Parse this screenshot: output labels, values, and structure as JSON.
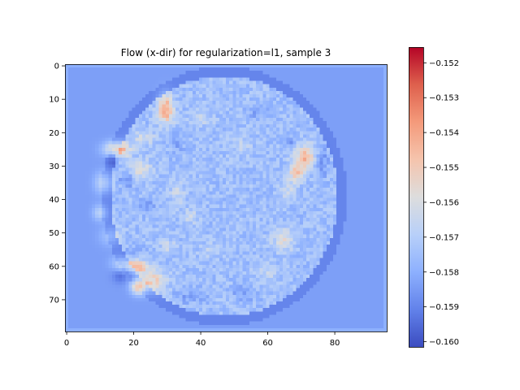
{
  "chart_data": {
    "type": "heatmap",
    "title": "Flow (x-dir) for regularization=l1, sample 3",
    "xlabel": "",
    "ylabel": "",
    "image_shape": [
      80,
      96
    ],
    "x_ticks": [
      "0",
      "20",
      "40",
      "60",
      "80"
    ],
    "y_ticks": [
      "0",
      "10",
      "20",
      "30",
      "40",
      "50",
      "60",
      "70"
    ],
    "x_tick_values": [
      0,
      20,
      40,
      60,
      80
    ],
    "y_tick_values": [
      0,
      10,
      20,
      30,
      40,
      50,
      60,
      70
    ],
    "colormap": "coolwarm",
    "vmin": -0.16015,
    "vmax": -0.15155,
    "colorbar_ticks": [
      "−0.152",
      "−0.153",
      "−0.154",
      "−0.155",
      "−0.156",
      "−0.157",
      "−0.158",
      "−0.159",
      "−0.160"
    ],
    "colorbar_tick_values": [
      -0.152,
      -0.153,
      -0.154,
      -0.155,
      -0.156,
      -0.157,
      -0.158,
      -0.159,
      -0.16
    ],
    "background_value": -0.1584,
    "blob": {
      "center": [
        47,
        39
      ],
      "radius_x": 34,
      "radius_y": 36,
      "value": -0.1575
    },
    "features": [
      {
        "x": 29.5,
        "y": 13,
        "sx": 1.6,
        "sy": 3.0,
        "v": 0.0035
      },
      {
        "x": 15,
        "y": 25,
        "sx": 2.6,
        "sy": 1.6,
        "v": 0.0036
      },
      {
        "x": 71,
        "y": 27.5,
        "sx": 2.2,
        "sy": 2.6,
        "v": 0.003
      },
      {
        "x": 68.5,
        "y": 32,
        "sx": 1.5,
        "sy": 1.8,
        "v": 0.0024
      },
      {
        "x": 21,
        "y": 60,
        "sx": 2.6,
        "sy": 1.3,
        "v": 0.0033
      },
      {
        "x": 21.5,
        "y": 66,
        "sx": 1.6,
        "sy": 1.6,
        "v": 0.0038
      },
      {
        "x": 26,
        "y": 64.5,
        "sx": 2.6,
        "sy": 2.2,
        "v": 0.0022
      },
      {
        "x": 11,
        "y": 35,
        "sx": 1.8,
        "sy": 2.2,
        "v": 0.0018
      },
      {
        "x": 10,
        "y": 44,
        "sx": 1.5,
        "sy": 1.6,
        "v": 0.0016
      },
      {
        "x": 22,
        "y": 31,
        "sx": 2.5,
        "sy": 2.0,
        "v": 0.0016
      },
      {
        "x": 23,
        "y": 21.5,
        "sx": 2.5,
        "sy": 1.6,
        "v": 0.0012
      },
      {
        "x": 64.5,
        "y": 52,
        "sx": 2.2,
        "sy": 2.5,
        "v": 0.0016
      },
      {
        "x": 13,
        "y": 51,
        "sx": 2.2,
        "sy": 2.0,
        "v": 0.001
      },
      {
        "x": 16,
        "y": 59,
        "sx": 2.0,
        "sy": 1.5,
        "v": 0.0012
      },
      {
        "x": 33,
        "y": 38,
        "sx": 1.6,
        "sy": 2.5,
        "v": 0.001
      },
      {
        "x": 37,
        "y": 45,
        "sx": 1.8,
        "sy": 1.6,
        "v": 0.0009
      },
      {
        "x": 30,
        "y": 54,
        "sx": 1.6,
        "sy": 1.6,
        "v": 0.001
      },
      {
        "x": 43,
        "y": 55,
        "sx": 2.2,
        "sy": 1.5,
        "v": 0.0008
      },
      {
        "x": 60,
        "y": 62,
        "sx": 2.5,
        "sy": 1.8,
        "v": 0.0008
      },
      {
        "x": 52,
        "y": 24,
        "sx": 2.5,
        "sy": 2.2,
        "v": 0.0007
      },
      {
        "x": 40,
        "y": 16,
        "sx": 2.5,
        "sy": 1.6,
        "v": 0.0008
      },
      {
        "x": 66,
        "y": 37,
        "sx": 1.6,
        "sy": 2.2,
        "v": 0.001
      },
      {
        "x": 18,
        "y": 34,
        "sx": 1.5,
        "sy": 1.5,
        "v": -0.0014
      },
      {
        "x": 24,
        "y": 42,
        "sx": 1.6,
        "sy": 1.6,
        "v": -0.0012
      },
      {
        "x": 14,
        "y": 28,
        "sx": 1.5,
        "sy": 1.5,
        "v": -0.001
      },
      {
        "x": 33,
        "y": 23,
        "sx": 1.5,
        "sy": 1.8,
        "v": -0.0008
      },
      {
        "x": 76,
        "y": 29,
        "sx": 1.4,
        "sy": 3.0,
        "v": -0.0012
      },
      {
        "x": 37,
        "y": 69,
        "sx": 3.0,
        "sy": 1.3,
        "v": -0.0008
      },
      {
        "x": 53,
        "y": 68,
        "sx": 2.5,
        "sy": 1.5,
        "v": -0.0008
      },
      {
        "x": 16,
        "y": 63,
        "sx": 1.6,
        "sy": 1.4,
        "v": -0.001
      },
      {
        "x": 20,
        "y": 56,
        "sx": 1.5,
        "sy": 1.4,
        "v": -0.0009
      },
      {
        "x": 67,
        "y": 23,
        "sx": 1.5,
        "sy": 1.5,
        "v": -0.001
      },
      {
        "x": 57,
        "y": 14,
        "sx": 2.0,
        "sy": 1.4,
        "v": -0.0007
      }
    ]
  }
}
